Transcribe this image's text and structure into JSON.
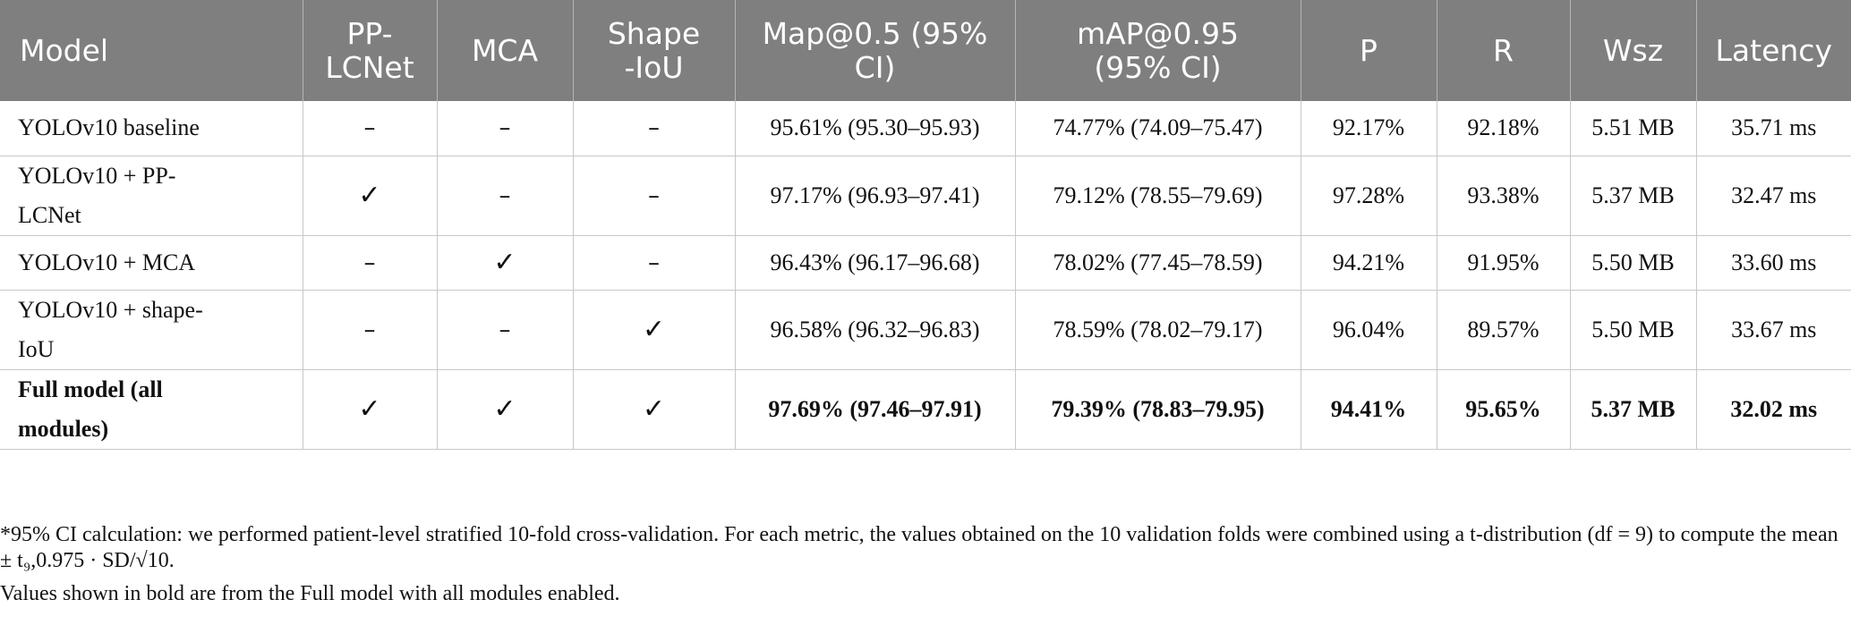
{
  "table": {
    "headers": [
      "Model",
      "PP-\nLCNet",
      "MCA",
      "Shape\n-IoU",
      "Map@0.5 (95%\nCI)",
      "mAP@0.95\n(95% CI)",
      "P",
      "R",
      "Wsz",
      "Latency"
    ],
    "rows": [
      {
        "model": "YOLOv10 baseline",
        "pp_lcnet": "–",
        "mca": "–",
        "shape_iou": "–",
        "map50": "95.61% (95.30–95.93)",
        "map95": "74.77% (74.09–75.47)",
        "p": "92.17%",
        "r": "92.18%",
        "wsz": "5.51 MB",
        "latency": "35.71 ms"
      },
      {
        "model": "YOLOv10 + PP-\nLCNet",
        "pp_lcnet": "✓",
        "mca": "–",
        "shape_iou": "–",
        "map50": "97.17% (96.93–97.41)",
        "map95": "79.12% (78.55–79.69)",
        "p": "97.28%",
        "r": "93.38%",
        "wsz": "5.37 MB",
        "latency": "32.47 ms"
      },
      {
        "model": "YOLOv10 + MCA",
        "pp_lcnet": "–",
        "mca": "✓",
        "shape_iou": "–",
        "map50": "96.43% (96.17–96.68)",
        "map95": "78.02% (77.45–78.59)",
        "p": "94.21%",
        "r": "91.95%",
        "wsz": "5.50 MB",
        "latency": "33.60 ms"
      },
      {
        "model": "YOLOv10 + shape-\nIoU",
        "pp_lcnet": "–",
        "mca": "–",
        "shape_iou": "✓",
        "map50": "96.58% (96.32–96.83)",
        "map95": "78.59% (78.02–79.17)",
        "p": "96.04%",
        "r": "89.57%",
        "wsz": "5.50 MB",
        "latency": "33.67 ms"
      },
      {
        "model": "Full model (all\nmodules)",
        "pp_lcnet": "✓",
        "mca": "✓",
        "shape_iou": "✓",
        "map50": "97.69% (97.46–97.91)",
        "map95": "79.39% (78.83–79.95)",
        "p": "94.41%",
        "r": "95.65%",
        "wsz": "5.37 MB",
        "latency": "32.02 ms"
      }
    ]
  },
  "footnotes": {
    "note1": "*95% CI calculation: we performed patient-level stratified 10-fold cross-validation. For each metric, the values obtained on the 10 validation folds were combined using a t-distribution (df = 9) to compute the mean ± t₉,0.975 · SD/√10.",
    "note2": "Values shown in bold are from the Full model with all modules enabled."
  },
  "colors": {
    "header_background": "#7f7f7f",
    "header_text": "#ffffff",
    "grid_line": "#c8c8c8"
  }
}
